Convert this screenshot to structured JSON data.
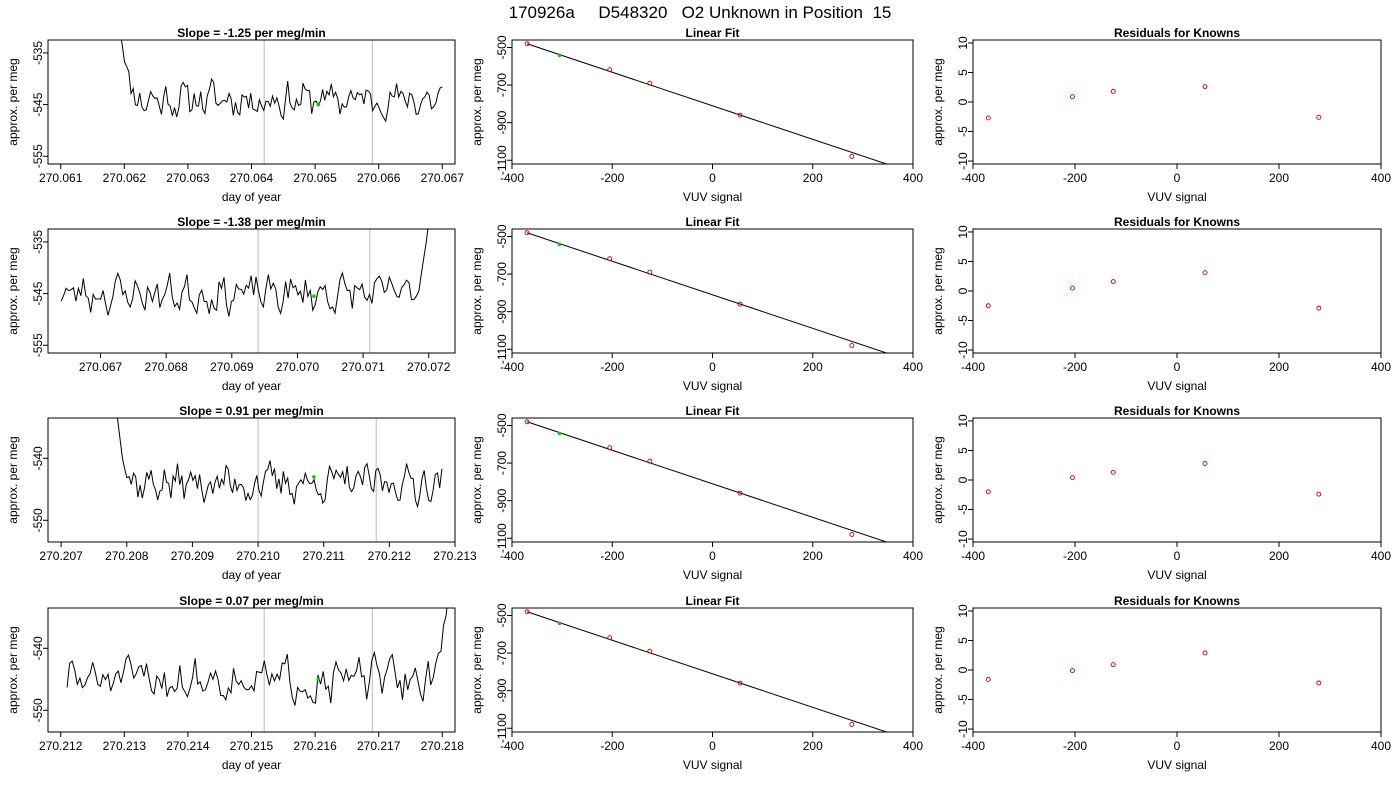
{
  "title": "170926a     D548320   O2 Unknown in Position  15",
  "colors": {
    "line": "#000000",
    "marker": "#cc0000",
    "current": "#00cc00",
    "vline": "#c8c8c8"
  },
  "panel_titles": {
    "fit": "Linear Fit",
    "residuals": "Residuals for Knowns"
  },
  "axis_labels": {
    "time_x": "day of year",
    "time_y": "approx. per meg",
    "fit_x": "VUV signal",
    "fit_y": "approx. per meg",
    "res_x": "VUV signal",
    "res_y": "approx. per meg"
  },
  "chart_data": [
    {
      "row": 0,
      "type": "line",
      "title": "Slope =  -1.25  per meg/min",
      "xlim": [
        270.0608,
        270.0672
      ],
      "ylim": [
        -556.5,
        -532.5
      ],
      "x_ticks": [
        "270.061",
        "270.062",
        "270.063",
        "270.064",
        "270.065",
        "270.066",
        "270.067"
      ],
      "y_ticks": [
        "-535",
        "-545",
        "-555"
      ],
      "x_start": 270.0619,
      "x_end": 270.067,
      "y_mean": -544.0,
      "y_noise": 1.8,
      "seed": 11,
      "start_spike": -527,
      "end_spike": null,
      "vlines": [
        270.0642,
        270.0659
      ],
      "current_point": {
        "x": 270.06505,
        "y": -545.0
      },
      "fit": {
        "knowns_x": [
          -370,
          -205,
          -125,
          55,
          278
        ],
        "knowns_y": [
          -480,
          -618,
          -690,
          -860,
          -1080
        ],
        "unknown_x": -305,
        "unknown_y": -542,
        "line": {
          "x1": -370,
          "y1": -480,
          "x2": 392,
          "y2": -1160
        },
        "xlim": [
          -400,
          400
        ],
        "ylim": [
          -1120,
          -460
        ],
        "x_ticks": [
          "-400",
          "-200",
          "0",
          "200",
          "400"
        ],
        "y_ticks": [
          "-500",
          "-700",
          "-900",
          "-1100"
        ]
      },
      "residuals": {
        "x": [
          -370,
          -205,
          -125,
          55,
          278
        ],
        "y": [
          -2.7,
          0.9,
          1.8,
          2.6,
          -2.6
        ],
        "xlim": [
          -400,
          400
        ],
        "ylim": [
          -10.5,
          10.5
        ],
        "x_ticks": [
          "-400",
          "-200",
          "0",
          "200",
          "400"
        ],
        "y_ticks": [
          "10",
          "5",
          "0",
          "-5",
          "-10"
        ]
      }
    },
    {
      "row": 1,
      "type": "line",
      "title": "Slope =  -1.38  per meg/min",
      "xlim": [
        270.0662,
        270.0724
      ],
      "ylim": [
        -556.5,
        -532.5
      ],
      "x_ticks": [
        "270.067",
        "270.068",
        "270.069",
        "270.070",
        "270.071",
        "270.072"
      ],
      "y_ticks": [
        "-535",
        "-545",
        "-555"
      ],
      "x_start": 270.0664,
      "x_end": 270.072,
      "y_mean": -545.0,
      "y_noise": 1.9,
      "seed": 23,
      "start_spike": null,
      "end_spike": -531,
      "vlines": [
        270.0694,
        270.0711
      ],
      "current_point": {
        "x": 270.07025,
        "y": -545.5
      },
      "fit": {
        "knowns_x": [
          -370,
          -205,
          -125,
          55,
          278
        ],
        "knowns_y": [
          -480,
          -618,
          -690,
          -860,
          -1080
        ],
        "unknown_x": -305,
        "unknown_y": -542,
        "line": {
          "x1": -370,
          "y1": -480,
          "x2": 392,
          "y2": -1160
        },
        "xlim": [
          -400,
          400
        ],
        "ylim": [
          -1120,
          -460
        ],
        "x_ticks": [
          "-400",
          "-200",
          "0",
          "200",
          "400"
        ],
        "y_ticks": [
          "-500",
          "-700",
          "-900",
          "-1100"
        ]
      },
      "residuals": {
        "x": [
          -370,
          -205,
          -125,
          55,
          278
        ],
        "y": [
          -2.5,
          0.5,
          1.6,
          3.1,
          -2.9
        ],
        "xlim": [
          -400,
          400
        ],
        "ylim": [
          -10.5,
          10.5
        ],
        "x_ticks": [
          "-400",
          "-200",
          "0",
          "200",
          "400"
        ],
        "y_ticks": [
          "10",
          "5",
          "0",
          "-5",
          "-10"
        ]
      }
    },
    {
      "row": 2,
      "type": "line",
      "title": "Slope =  0.91  per meg/min",
      "xlim": [
        270.2068,
        270.213
      ],
      "ylim": [
        -553.5,
        -533.5
      ],
      "x_ticks": [
        "270.207",
        "270.208",
        "270.209",
        "270.210",
        "270.211",
        "270.212",
        "270.213"
      ],
      "y_ticks": [
        "-540",
        "-550"
      ],
      "x_start": 270.2078,
      "x_end": 270.2128,
      "y_mean": -544.0,
      "y_noise": 1.6,
      "seed": 37,
      "start_spike": -528,
      "end_spike": null,
      "vlines": [
        270.21,
        270.2118
      ],
      "current_point": {
        "x": 270.21085,
        "y": -543.0
      },
      "fit": {
        "knowns_x": [
          -370,
          -205,
          -125,
          55,
          278
        ],
        "knowns_y": [
          -480,
          -618,
          -690,
          -860,
          -1080
        ],
        "unknown_x": -305,
        "unknown_y": -542,
        "line": {
          "x1": -370,
          "y1": -480,
          "x2": 392,
          "y2": -1160
        },
        "xlim": [
          -400,
          400
        ],
        "ylim": [
          -1120,
          -460
        ],
        "x_ticks": [
          "-400",
          "-200",
          "0",
          "200",
          "400"
        ],
        "y_ticks": [
          "-500",
          "-700",
          "-900",
          "-1100"
        ]
      },
      "residuals": {
        "x": [
          -370,
          -205,
          -125,
          55,
          278
        ],
        "y": [
          -2.0,
          0.4,
          1.3,
          2.8,
          -2.4
        ],
        "xlim": [
          -400,
          400
        ],
        "ylim": [
          -10.5,
          10.5
        ],
        "x_ticks": [
          "-400",
          "-200",
          "0",
          "200",
          "400"
        ],
        "y_ticks": [
          "10",
          "5",
          "0",
          "-5",
          "-10"
        ]
      }
    },
    {
      "row": 3,
      "type": "line",
      "title": "Slope =  0.07  per meg/min",
      "xlim": [
        270.2118,
        270.2182
      ],
      "ylim": [
        -553.5,
        -533.5
      ],
      "x_ticks": [
        "270.212",
        "270.213",
        "270.214",
        "270.215",
        "270.216",
        "270.217",
        "270.218"
      ],
      "y_ticks": [
        "-540",
        "-550"
      ],
      "x_start": 270.2121,
      "x_end": 270.2181,
      "y_mean": -545.0,
      "y_noise": 1.8,
      "seed": 51,
      "start_spike": null,
      "end_spike": -531,
      "vlines": [
        270.2152,
        270.2169
      ],
      "current_point": {
        "x": 270.21605,
        "y": -545.0
      },
      "fit": {
        "knowns_x": [
          -370,
          -205,
          -125,
          55,
          278
        ],
        "knowns_y": [
          -480,
          -618,
          -690,
          -860,
          -1080
        ],
        "unknown_x": -305,
        "unknown_y": -542,
        "line": {
          "x1": -370,
          "y1": -480,
          "x2": 392,
          "y2": -1160
        },
        "xlim": [
          -400,
          400
        ],
        "ylim": [
          -1120,
          -460
        ],
        "x_ticks": [
          "-400",
          "-200",
          "0",
          "200",
          "400"
        ],
        "y_ticks": [
          "-500",
          "-700",
          "-900",
          "-1100"
        ]
      },
      "residuals": {
        "x": [
          -370,
          -205,
          -125,
          55,
          278
        ],
        "y": [
          -1.6,
          -0.1,
          0.9,
          2.9,
          -2.2
        ],
        "xlim": [
          -400,
          400
        ],
        "ylim": [
          -10.5,
          10.5
        ],
        "x_ticks": [
          "-400",
          "-200",
          "0",
          "200",
          "400"
        ],
        "y_ticks": [
          "10",
          "5",
          "0",
          "-5",
          "-10"
        ]
      }
    }
  ]
}
